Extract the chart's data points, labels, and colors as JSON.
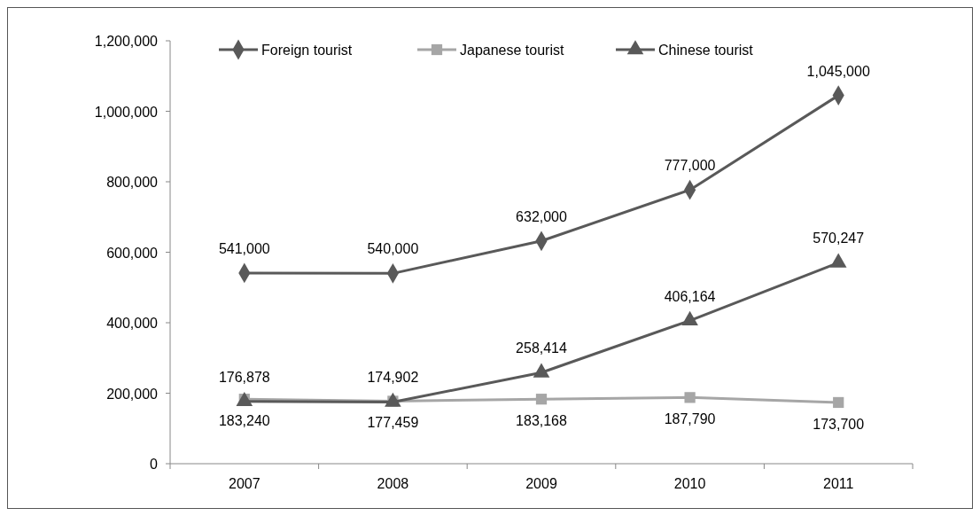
{
  "chart_data": {
    "type": "line",
    "categories": [
      "2007",
      "2008",
      "2009",
      "2010",
      "2011"
    ],
    "series": [
      {
        "name": "Foreign tourist",
        "color": "#595959",
        "marker": "diamond",
        "values": [
          541000,
          540000,
          632000,
          777000,
          1045000
        ],
        "value_labels": [
          "541,000",
          "540,000",
          "632,000",
          "777,000",
          "1,045,000"
        ]
      },
      {
        "name": "Japanese tourist",
        "color": "#a6a6a6",
        "marker": "square",
        "values": [
          183240,
          177459,
          183168,
          187790,
          173700
        ],
        "value_labels": [
          "183,240",
          "177,459",
          "183,168",
          "187,790",
          "173,700"
        ]
      },
      {
        "name": "Chinese tourist",
        "color": "#595959",
        "marker": "triangle",
        "values": [
          176878,
          174902,
          258414,
          406164,
          570247
        ],
        "value_labels": [
          "176,878",
          "174,902",
          "258,414",
          "406,164",
          "570,247"
        ]
      }
    ],
    "ylim": [
      0,
      1200000
    ],
    "yticks": [
      {
        "value": 0,
        "label": "0"
      },
      {
        "value": 200000,
        "label": "200,000"
      },
      {
        "value": 400000,
        "label": "400,000"
      },
      {
        "value": 600000,
        "label": "600,000"
      },
      {
        "value": 800000,
        "label": "800,000"
      },
      {
        "value": 1000000,
        "label": "1,000,000"
      },
      {
        "value": 1200000,
        "label": "1,200,000"
      }
    ],
    "legend": "top left",
    "grid": false
  }
}
